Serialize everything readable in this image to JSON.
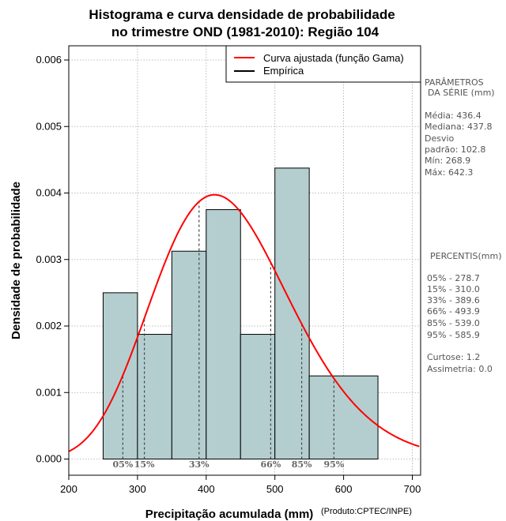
{
  "chart_data": {
    "type": "bar",
    "title": "Histograma e curva densidade de probabilidade",
    "subtitle": "no trimestre OND (1981-2010): Região 104",
    "xlabel": "Precipitação acumulada (mm)",
    "ylabel": "Densidade de probabilidade",
    "credit": "(Produto:CPTEC/INPE)",
    "xlim": [
      200,
      710
    ],
    "ylim": [
      0,
      0.0062
    ],
    "x_ticks": [
      200,
      300,
      400,
      500,
      600,
      700
    ],
    "x_tick_labels": [
      "200",
      "300",
      "400",
      "500",
      "600",
      "700"
    ],
    "y_ticks": [
      0,
      0.001,
      0.002,
      0.003,
      0.004,
      0.005,
      0.006
    ],
    "y_tick_labels": [
      "0.000",
      "0.001",
      "0.002",
      "0.003",
      "0.004",
      "0.005",
      "0.006"
    ],
    "grid": true,
    "bins": [
      {
        "start": 250,
        "end": 300,
        "density": 0.0025
      },
      {
        "start": 300,
        "end": 350,
        "density": 0.001875
      },
      {
        "start": 350,
        "end": 400,
        "density": 0.003125
      },
      {
        "start": 400,
        "end": 450,
        "density": 0.00375
      },
      {
        "start": 450,
        "end": 500,
        "density": 0.001875
      },
      {
        "start": 500,
        "end": 550,
        "density": 0.004375
      },
      {
        "start": 550,
        "end": 650,
        "density": 0.00125
      }
    ],
    "fitted_curve": {
      "name": "Curva ajustada (função Gama)",
      "distribution": "gamma",
      "mean": 436.4,
      "sd": 102.8,
      "color": "#ff0000"
    },
    "legend": [
      {
        "label": "Curva ajustada (função Gama)",
        "color": "#ff0000"
      },
      {
        "label": "Empírica",
        "color": "#000000"
      }
    ],
    "legend_position": "top-right",
    "percentile_markers": [
      {
        "label": "05%",
        "value": 278.7
      },
      {
        "label": "15%",
        "value": 310.0
      },
      {
        "label": "33%",
        "value": 389.6
      },
      {
        "label": "66%",
        "value": 493.9
      },
      {
        "label": "85%",
        "value": 539.0
      },
      {
        "label": "95%",
        "value": 585.9
      }
    ],
    "colors": {
      "bar_fill": "#b4cecf",
      "bar_stroke": "#000000",
      "grid": "#aaaaaa"
    }
  },
  "sidebar": {
    "params_title_line1": "PARÂMETROS",
    "params_title_line2": "DA SÉRIE (mm)",
    "media": "Média:  436.4",
    "mediana": "Mediana:  437.8",
    "desvio_line1": "Desvio",
    "desvio_line2": "padrão:  102.8",
    "min": "Mín:  268.9",
    "max": "Máx:  642.3",
    "percentis_title": "PERCENTIS(mm)",
    "percentis": [
      "05% -   278.7",
      "15% -   310.0",
      "33% -   389.6",
      "66% -   493.9",
      "85% -   539.0",
      "95% -   585.9"
    ],
    "curtose": "Curtose:  1.2",
    "assimetria": "Assimetria:  0.0"
  }
}
